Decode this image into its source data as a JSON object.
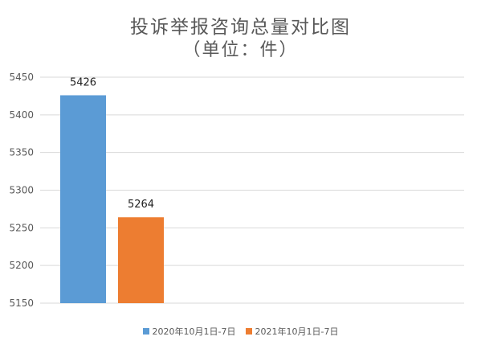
{
  "chart_data": {
    "type": "bar",
    "title": "投诉举报咨询总量对比图",
    "subtitle": "（单位：件）",
    "categories": [
      "2020年10月1日-7日",
      "2021年10月1日-7日"
    ],
    "values": [
      5426,
      5264
    ],
    "colors": [
      "#5B9BD5",
      "#ED7D31"
    ],
    "ylim": [
      5150,
      5450
    ],
    "yticks": [
      5150,
      5200,
      5250,
      5300,
      5350,
      5400,
      5450
    ],
    "grid": true,
    "legend": "bottom"
  }
}
